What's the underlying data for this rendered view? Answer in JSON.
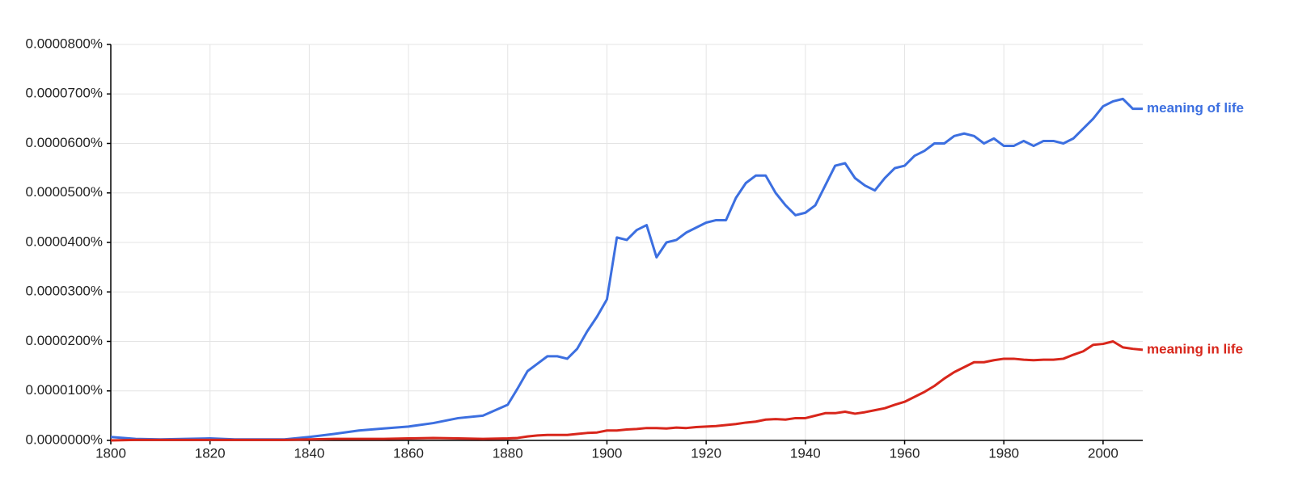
{
  "chart_data": {
    "type": "line",
    "x": [
      1800,
      1805,
      1810,
      1815,
      1820,
      1825,
      1830,
      1835,
      1840,
      1845,
      1850,
      1855,
      1860,
      1865,
      1870,
      1875,
      1880,
      1882,
      1884,
      1886,
      1888,
      1890,
      1892,
      1894,
      1896,
      1898,
      1900,
      1902,
      1904,
      1906,
      1908,
      1910,
      1912,
      1914,
      1916,
      1918,
      1920,
      1922,
      1924,
      1926,
      1928,
      1930,
      1932,
      1934,
      1936,
      1938,
      1940,
      1942,
      1944,
      1946,
      1948,
      1950,
      1952,
      1954,
      1956,
      1958,
      1960,
      1962,
      1964,
      1966,
      1968,
      1970,
      1972,
      1974,
      1976,
      1978,
      1980,
      1982,
      1984,
      1986,
      1988,
      1990,
      1992,
      1994,
      1996,
      1998,
      2000,
      2002,
      2004,
      2006,
      2008
    ],
    "series": [
      {
        "name": "meaning of life",
        "color": "#3c6fe0",
        "values": [
          7e-07,
          3e-07,
          2e-07,
          3e-07,
          4e-07,
          2e-07,
          2e-07,
          2e-07,
          7e-07,
          1.3e-06,
          2e-06,
          2.4e-06,
          2.8e-06,
          3.5e-06,
          4.5e-06,
          5e-06,
          7.2e-06,
          1.05e-05,
          1.4e-05,
          1.55e-05,
          1.7e-05,
          1.7e-05,
          1.65e-05,
          1.85e-05,
          2.2e-05,
          2.5e-05,
          2.85e-05,
          4.1e-05,
          4.05e-05,
          4.25e-05,
          4.35e-05,
          3.7e-05,
          4e-05,
          4.05e-05,
          4.2e-05,
          4.3e-05,
          4.4e-05,
          4.45e-05,
          4.45e-05,
          4.9e-05,
          5.2e-05,
          5.35e-05,
          5.35e-05,
          5e-05,
          4.75e-05,
          4.55e-05,
          4.6e-05,
          4.75e-05,
          5.15e-05,
          5.55e-05,
          5.6e-05,
          5.3e-05,
          5.15e-05,
          5.05e-05,
          5.3e-05,
          5.5e-05,
          5.55e-05,
          5.75e-05,
          5.85e-05,
          6e-05,
          6e-05,
          6.15e-05,
          6.2e-05,
          6.15e-05,
          6e-05,
          6.1e-05,
          5.95e-05,
          5.95e-05,
          6.05e-05,
          5.95e-05,
          6.05e-05,
          6.05e-05,
          6e-05,
          6.1e-05,
          6.3e-05,
          6.5e-05,
          6.75e-05,
          6.85e-05,
          6.9e-05,
          6.7e-05,
          6.7e-05
        ]
      },
      {
        "name": "meaning in life",
        "color": "#d8261b",
        "values": [
          0,
          1e-07,
          1e-07,
          1e-07,
          1e-07,
          1e-07,
          1e-07,
          1e-07,
          2e-07,
          3e-07,
          3e-07,
          3e-07,
          4e-07,
          5e-07,
          4e-07,
          3e-07,
          4e-07,
          5e-07,
          8e-07,
          1e-06,
          1.1e-06,
          1.1e-06,
          1.1e-06,
          1.3e-06,
          1.5e-06,
          1.6e-06,
          2e-06,
          2e-06,
          2.2e-06,
          2.3e-06,
          2.5e-06,
          2.5e-06,
          2.4e-06,
          2.6e-06,
          2.5e-06,
          2.7e-06,
          2.8e-06,
          2.9e-06,
          3.1e-06,
          3.3e-06,
          3.6e-06,
          3.8e-06,
          4.2e-06,
          4.3e-06,
          4.2e-06,
          4.5e-06,
          4.5e-06,
          5e-06,
          5.5e-06,
          5.5e-06,
          5.8e-06,
          5.4e-06,
          5.7e-06,
          6.1e-06,
          6.5e-06,
          7.2e-06,
          7.8e-06,
          8.8e-06,
          9.8e-06,
          1.1e-05,
          1.25e-05,
          1.38e-05,
          1.48e-05,
          1.58e-05,
          1.58e-05,
          1.62e-05,
          1.65e-05,
          1.65e-05,
          1.63e-05,
          1.62e-05,
          1.63e-05,
          1.63e-05,
          1.65e-05,
          1.73e-05,
          1.8e-05,
          1.93e-05,
          1.95e-05,
          2e-05,
          1.88e-05,
          1.85e-05,
          1.83e-05
        ]
      }
    ],
    "xlim": [
      1800,
      2008
    ],
    "xticks": [
      1800,
      1820,
      1840,
      1860,
      1880,
      1900,
      1920,
      1940,
      1960,
      1980,
      2000
    ],
    "ylim": [
      0,
      8e-05
    ],
    "yticks": [
      {
        "value": 0,
        "label": "0.0000000%"
      },
      {
        "value": 1e-05,
        "label": "0.0000100%"
      },
      {
        "value": 2e-05,
        "label": "0.0000200%"
      },
      {
        "value": 3e-05,
        "label": "0.0000300%"
      },
      {
        "value": 4e-05,
        "label": "0.0000400%"
      },
      {
        "value": 5e-05,
        "label": "0.0000500%"
      },
      {
        "value": 6e-05,
        "label": "0.0000600%"
      },
      {
        "value": 7e-05,
        "label": "0.0000700%"
      },
      {
        "value": 8e-05,
        "label": "0.0000800%"
      }
    ],
    "grid": true
  }
}
